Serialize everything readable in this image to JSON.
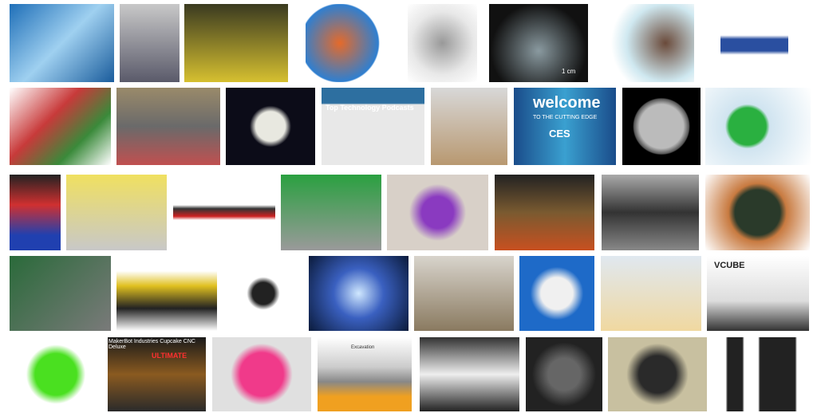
{
  "thumbnails": {
    "texts": {
      "scale_bar": "1 cm",
      "podcasts_title": "Top Technology Podcasts",
      "ces_welcome": "welcome",
      "ces_tagline": "TO THE CUTTING EDGE",
      "ces_logo": "CES",
      "vcube": "VCUBE",
      "makerbot_title": "MakerBot Industries Cupcake CNC Deluxe",
      "ultimate": "ULTIMATE",
      "excavation": "Excavation"
    }
  }
}
